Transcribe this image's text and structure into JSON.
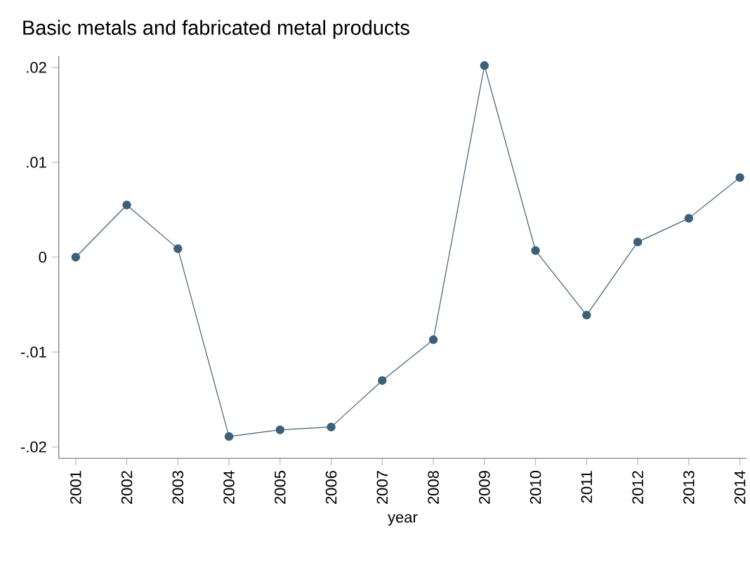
{
  "chart_data": {
    "type": "line",
    "title": "Basic metals and fabricated metal products",
    "xlabel": "year",
    "x": [
      2001,
      2002,
      2003,
      2004,
      2005,
      2006,
      2007,
      2008,
      2009,
      2010,
      2011,
      2012,
      2013,
      2014
    ],
    "series": [
      {
        "color": "#3e5f78",
        "values": [
          0.0,
          0.0055,
          0.0009,
          -0.0189,
          -0.0182,
          -0.0179,
          -0.013,
          -0.0087,
          0.0202,
          0.0007,
          -0.0061,
          0.0016,
          0.0041,
          0.0084
        ]
      }
    ],
    "xlim": [
      2000.67,
      2014.13
    ],
    "ylim": [
      -0.0212,
      0.0212
    ],
    "xticks": [
      2001,
      2002,
      2003,
      2004,
      2005,
      2006,
      2007,
      2008,
      2009,
      2010,
      2011,
      2012,
      2013,
      2014
    ],
    "yticks": [
      {
        "value": -0.02,
        "label": "-.02"
      },
      {
        "value": -0.01,
        "label": "-.01"
      },
      {
        "value": 0,
        "label": "0"
      },
      {
        "value": 0.01,
        "label": ".01"
      },
      {
        "value": 0.02,
        "label": ".02"
      }
    ],
    "grid": false,
    "marker": "circle",
    "line_style": "solid"
  }
}
